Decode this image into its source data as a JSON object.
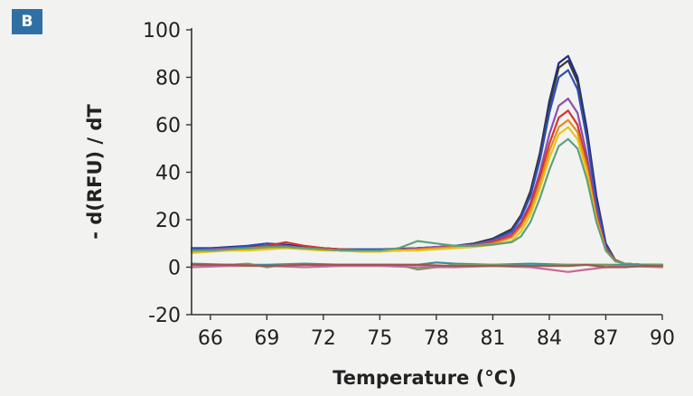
{
  "panel_label": "B",
  "chart_data": {
    "type": "line",
    "title": "",
    "xlabel": "Temperature (°C)",
    "ylabel": "- d(RFU) / dT",
    "xlim": [
      65,
      90
    ],
    "ylim": [
      -20,
      100
    ],
    "xticks": [
      66,
      69,
      72,
      75,
      78,
      81,
      84,
      87,
      90
    ],
    "yticks": [
      -20,
      0,
      20,
      40,
      60,
      80,
      100
    ],
    "grid": false,
    "legend": "none",
    "series": [
      {
        "color": "#1f2a8a",
        "x": [
          65,
          66,
          67,
          68,
          69,
          70,
          71,
          72,
          73,
          74,
          75,
          76,
          77,
          78,
          79,
          80,
          81,
          82,
          82.5,
          83,
          83.5,
          84,
          84.5,
          85,
          85.5,
          86,
          86.5,
          87,
          87.5,
          88,
          89,
          90
        ],
        "y": [
          8,
          8,
          8.5,
          9,
          10,
          9.5,
          8.5,
          8,
          7.5,
          7.5,
          7.5,
          7.8,
          8,
          8.5,
          9,
          10,
          12,
          16,
          22,
          32,
          48,
          70,
          86,
          89,
          80,
          58,
          30,
          10,
          3,
          1.5,
          1,
          1
        ]
      },
      {
        "color": "#3a3a3a",
        "x": [
          65,
          66,
          67,
          68,
          69,
          70,
          71,
          72,
          73,
          74,
          75,
          76,
          77,
          78,
          79,
          80,
          81,
          82,
          82.5,
          83,
          83.5,
          84,
          84.5,
          85,
          85.5,
          86,
          86.5,
          87,
          87.5,
          88,
          89,
          90
        ],
        "y": [
          7,
          7.5,
          8,
          8.5,
          9,
          8.5,
          8,
          7.5,
          7,
          7,
          7,
          7.5,
          8,
          8.5,
          9,
          10,
          12,
          16,
          22,
          32,
          48,
          68,
          84,
          87,
          78,
          56,
          28,
          9,
          3,
          1.5,
          1,
          1
        ]
      },
      {
        "color": "#2c4fb8",
        "x": [
          65,
          66,
          67,
          68,
          69,
          70,
          71,
          72,
          73,
          74,
          75,
          76,
          77,
          78,
          79,
          80,
          81,
          82,
          82.5,
          83,
          83.5,
          84,
          84.5,
          85,
          85.5,
          86,
          86.5,
          87,
          87.5,
          88,
          89,
          90
        ],
        "y": [
          8,
          8,
          8,
          9,
          10,
          9,
          8,
          8,
          7.5,
          7.5,
          7.5,
          7.5,
          8,
          8,
          9,
          9.5,
          11.5,
          15,
          21,
          30,
          45,
          65,
          80,
          83,
          75,
          54,
          27,
          9,
          3,
          1.5,
          1,
          1
        ]
      },
      {
        "color": "#8a4fb0",
        "x": [
          65,
          66,
          67,
          68,
          69,
          70,
          71,
          72,
          73,
          74,
          75,
          76,
          77,
          78,
          79,
          80,
          81,
          82,
          82.5,
          83,
          83.5,
          84,
          84.5,
          85,
          85.5,
          86,
          86.5,
          87,
          87.5,
          88,
          89,
          90
        ],
        "y": [
          7,
          7.5,
          8,
          8,
          9,
          9,
          8,
          7.5,
          7,
          7,
          7,
          7.5,
          8,
          8.5,
          9,
          9.5,
          11,
          14,
          19,
          27,
          40,
          56,
          68,
          71,
          65,
          47,
          24,
          8,
          3,
          1.5,
          1,
          1
        ]
      },
      {
        "color": "#d6342e",
        "x": [
          65,
          66,
          67,
          68,
          69,
          70,
          71,
          72,
          73,
          74,
          75,
          76,
          77,
          78,
          79,
          80,
          81,
          82,
          82.5,
          83,
          83.5,
          84,
          84.5,
          85,
          85.5,
          86,
          86.5,
          87,
          87.5,
          88,
          89,
          90
        ],
        "y": [
          6.5,
          7,
          7.5,
          8,
          9,
          10.5,
          9,
          8,
          7.5,
          7,
          7,
          7,
          7.5,
          8,
          8.5,
          9,
          10.5,
          13,
          18,
          26,
          38,
          52,
          63,
          66,
          60,
          44,
          22,
          8,
          3,
          1.5,
          1,
          1
        ]
      },
      {
        "color": "#e58a1c",
        "x": [
          65,
          66,
          67,
          68,
          69,
          70,
          71,
          72,
          73,
          74,
          75,
          76,
          77,
          78,
          79,
          80,
          81,
          82,
          82.5,
          83,
          83.5,
          84,
          84.5,
          85,
          85.5,
          86,
          86.5,
          87,
          87.5,
          88,
          89,
          90
        ],
        "y": [
          6.5,
          7,
          7,
          7.5,
          8,
          8.5,
          8,
          7.5,
          7,
          7,
          7,
          7,
          7.5,
          8,
          8.5,
          9,
          10,
          12.5,
          17,
          24,
          35,
          49,
          59,
          62,
          57,
          42,
          21,
          7,
          2.5,
          1.5,
          1,
          1
        ]
      },
      {
        "color": "#e8c51a",
        "x": [
          65,
          66,
          67,
          68,
          69,
          70,
          71,
          72,
          73,
          74,
          75,
          76,
          77,
          78,
          79,
          80,
          81,
          82,
          82.5,
          83,
          83.5,
          84,
          84.5,
          85,
          85.5,
          86,
          86.5,
          87,
          87.5,
          88,
          89,
          90
        ],
        "y": [
          6,
          6.5,
          7,
          7,
          7.5,
          8,
          7.5,
          7,
          7,
          6.5,
          6.5,
          7,
          7,
          7.5,
          8,
          8.5,
          9.5,
          11,
          15,
          22,
          33,
          46,
          56,
          59,
          54,
          40,
          20,
          7,
          2.5,
          1.5,
          1,
          1
        ]
      },
      {
        "color": "#5fa07a",
        "x": [
          65,
          66,
          67,
          68,
          69,
          70,
          71,
          72,
          73,
          74,
          75,
          76,
          77,
          78,
          79,
          80,
          81,
          82,
          82.5,
          83,
          83.5,
          84,
          84.5,
          85,
          85.5,
          86,
          86.5,
          87,
          87.5,
          88,
          89,
          90
        ],
        "y": [
          7,
          7,
          7.5,
          8,
          8.5,
          8.5,
          8,
          7.5,
          7,
          7,
          7,
          8,
          11,
          10,
          9,
          9,
          9.5,
          10.5,
          13,
          19,
          29,
          41,
          51,
          54,
          50,
          37,
          19,
          7,
          2.5,
          1.5,
          1,
          1
        ]
      },
      {
        "color": "#3c8f9a",
        "x": [
          65,
          67,
          69,
          71,
          73,
          75,
          76,
          77,
          78,
          79,
          81,
          83,
          85,
          86,
          87,
          88,
          90
        ],
        "y": [
          1.5,
          1,
          1,
          1.5,
          1,
          1,
          1,
          1,
          2,
          1.5,
          1,
          1.5,
          1,
          1,
          1,
          1,
          1
        ]
      },
      {
        "color": "#7a9a60",
        "x": [
          65,
          67,
          68,
          69,
          70,
          72,
          74,
          76,
          77,
          78,
          79,
          81,
          83,
          85,
          87,
          88,
          90
        ],
        "y": [
          1,
          1,
          1.5,
          0,
          1,
          1,
          1,
          1,
          -1,
          0,
          1,
          1,
          0.5,
          1,
          1,
          0.5,
          1
        ]
      },
      {
        "color": "#c46a9a",
        "x": [
          65,
          67,
          69,
          71,
          73,
          75,
          77,
          79,
          81,
          83,
          84,
          85,
          86,
          87,
          88,
          90
        ],
        "y": [
          0,
          0.5,
          0.5,
          0,
          0.5,
          0.5,
          0,
          0,
          0.5,
          0,
          -1,
          -2,
          -1,
          0,
          0.5,
          0
        ]
      },
      {
        "color": "#9a5a50",
        "x": [
          65,
          67,
          69,
          71,
          73,
          75,
          77,
          79,
          81,
          83,
          85,
          86,
          87,
          88,
          89,
          90
        ],
        "y": [
          1,
          1,
          0.5,
          1,
          1,
          1,
          1,
          0.5,
          0.5,
          0.5,
          0.5,
          1,
          0,
          0,
          0.5,
          0.5
        ]
      }
    ]
  }
}
